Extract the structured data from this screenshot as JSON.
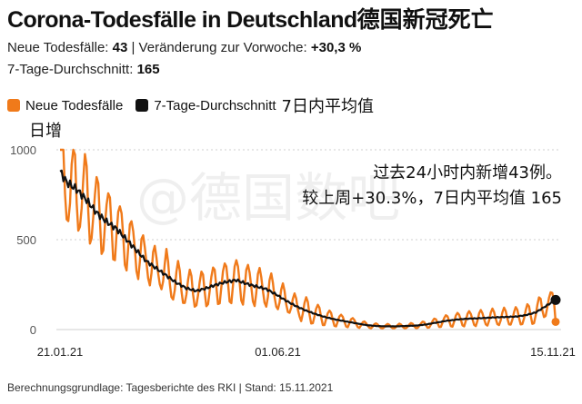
{
  "header": {
    "title": "Corona-Todesfälle in Deutschland",
    "title_zh": "德国新冠死亡",
    "line1_label": "Neue Todesfälle: ",
    "line1_value": "43",
    "line1_sep": " | Veränderung zur Vorwoche: ",
    "line1_change": "+30,3 %",
    "line2_label": "7-Tage-Durchschnitt: ",
    "line2_value": "165"
  },
  "legend": {
    "item1": "Neue Todesfälle",
    "item2": "7-Tage-Durchschnitt",
    "item2_zh": "7日内平均值",
    "item1_zh": "日增"
  },
  "annotation": {
    "line1": "过去24小时内新增43例。",
    "line2": "较上周+30.3%，7日内平均值 165"
  },
  "watermark": "@德国数吧",
  "source": "Berechnungsgrundlage: Tagesberichte des RKI | Stand: 15.11.2021",
  "colors": {
    "daily": "#f07a1a",
    "avg": "#111111",
    "grid": "#cfcfcf"
  },
  "chart_data": {
    "type": "line",
    "title": "Corona-Todesfälle in Deutschland",
    "xlabel": "",
    "ylabel": "",
    "ylim": [
      0,
      1000
    ],
    "yticks": [
      0,
      500,
      1000
    ],
    "x_start": "21.01.21",
    "x_end": "15.11.21",
    "xticks": [
      {
        "label": "21.01.21",
        "day": 0
      },
      {
        "label": "01.06.21",
        "day": 131
      },
      {
        "label": "15.11.21",
        "day": 298
      }
    ],
    "avg_anchors": [
      [
        0,
        880
      ],
      [
        4,
        820
      ],
      [
        10,
        780
      ],
      [
        16,
        720
      ],
      [
        22,
        650
      ],
      [
        28,
        600
      ],
      [
        34,
        560
      ],
      [
        40,
        500
      ],
      [
        46,
        440
      ],
      [
        52,
        380
      ],
      [
        58,
        340
      ],
      [
        64,
        300
      ],
      [
        70,
        260
      ],
      [
        76,
        230
      ],
      [
        82,
        215
      ],
      [
        88,
        230
      ],
      [
        94,
        250
      ],
      [
        100,
        265
      ],
      [
        106,
        275
      ],
      [
        112,
        255
      ],
      [
        118,
        240
      ],
      [
        124,
        225
      ],
      [
        130,
        195
      ],
      [
        136,
        160
      ],
      [
        142,
        130
      ],
      [
        148,
        105
      ],
      [
        154,
        85
      ],
      [
        160,
        68
      ],
      [
        166,
        55
      ],
      [
        172,
        45
      ],
      [
        178,
        35
      ],
      [
        184,
        25
      ],
      [
        190,
        20
      ],
      [
        196,
        18
      ],
      [
        202,
        18
      ],
      [
        208,
        20
      ],
      [
        214,
        22
      ],
      [
        220,
        28
      ],
      [
        226,
        38
      ],
      [
        232,
        48
      ],
      [
        238,
        55
      ],
      [
        244,
        60
      ],
      [
        250,
        62
      ],
      [
        256,
        65
      ],
      [
        262,
        68
      ],
      [
        268,
        70
      ],
      [
        274,
        72
      ],
      [
        280,
        80
      ],
      [
        286,
        95
      ],
      [
        292,
        130
      ],
      [
        298,
        165
      ]
    ],
    "series": [
      {
        "name": "Neue Todesfälle",
        "style": "line",
        "last_value": 43
      },
      {
        "name": "7-Tage-Durchschnitt",
        "style": "line",
        "last_value": 165
      }
    ]
  }
}
